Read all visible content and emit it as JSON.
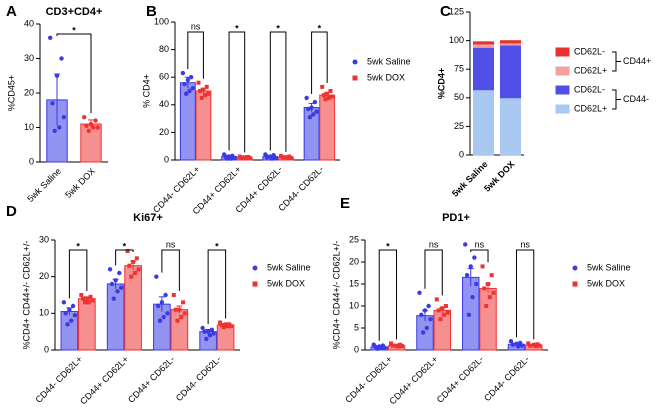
{
  "chart_data": [
    {
      "type": "bar",
      "panel": "A",
      "title": "CD3+CD4+",
      "ylabel": "%CD45+",
      "categories": [
        "5wk Saline",
        "5wk DOX"
      ],
      "colors": [
        "#3a3ae6",
        "#ee3333"
      ],
      "series": [
        {
          "values": [
            18,
            11
          ],
          "errors": [
            7.5,
            1.2
          ],
          "points": [
            [
              36,
              30,
              25,
              17,
              13,
              10,
              9
            ],
            [
              13,
              12,
              11,
              10.5,
              10,
              10,
              9
            ]
          ]
        }
      ],
      "ylim": [
        0,
        40
      ],
      "yticks": [
        0,
        10,
        20,
        30,
        40
      ],
      "significance": [
        "*"
      ]
    },
    {
      "type": "bar",
      "panel": "B",
      "ylabel": "% CD4+",
      "categories": [
        "CD44- CD62L+",
        "CD44+ CD62L+",
        "CD44+ CD62L-",
        "CD44- CD62L-"
      ],
      "series": [
        {
          "name": "5wk Saline",
          "color": "#3a3ae6",
          "marker": "circle",
          "values": [
            56,
            2.5,
            2.5,
            38
          ],
          "errors": [
            4,
            1,
            1,
            3
          ],
          "points": [
            [
              63,
              60,
              58,
              55,
              52,
              50,
              48
            ],
            [
              4,
              3,
              2.5,
              2,
              1.5,
              1,
              1
            ],
            [
              4,
              3.5,
              2.5,
              2,
              1.5,
              1
            ],
            [
              45,
              42,
              38,
              37,
              35,
              33,
              31
            ]
          ]
        },
        {
          "name": "5wk DOX",
          "color": "#ee3333",
          "marker": "square",
          "values": [
            50,
            2,
            2,
            47
          ],
          "errors": [
            2,
            0.5,
            0.5,
            2
          ],
          "points": [
            [
              56,
              53,
              51,
              50,
              48,
              47,
              45
            ],
            [
              2.5,
              2.2,
              2,
              1.8,
              1.5,
              1.5
            ],
            [
              3,
              2.5,
              2,
              2,
              1.5,
              1.5
            ],
            [
              53,
              50,
              48,
              47,
              46,
              45,
              44
            ]
          ]
        }
      ],
      "ylim": [
        0,
        100
      ],
      "yticks": [
        0,
        20,
        40,
        60,
        80,
        100
      ],
      "significance": [
        "ns",
        "*",
        "*",
        "*"
      ]
    },
    {
      "type": "stacked_bar",
      "panel": "C",
      "ylabel": "%CD4+",
      "categories": [
        "5wk Saline",
        "5wk DOX"
      ],
      "series": [
        {
          "name": "CD62L+",
          "color": "#a8c8f0",
          "values": [
            57,
            50
          ]
        },
        {
          "name": "CD62L-",
          "color": "#5050e8",
          "values": [
            37,
            46
          ]
        },
        {
          "name": "CD62L+",
          "color": "#f4a0a0",
          "values": [
            3,
            2
          ]
        },
        {
          "name": "CD62L-",
          "color": "#e83030",
          "values": [
            2,
            2
          ]
        }
      ],
      "legend_groups": [
        "CD44+",
        "CD44-"
      ],
      "ylim": [
        0,
        125
      ],
      "yticks": [
        0,
        25,
        50,
        75,
        100,
        125
      ]
    },
    {
      "type": "bar",
      "panel": "D",
      "title": "Ki67+",
      "ylabel": "%CD4+ CD44+/- CD62L+/-",
      "categories": [
        "CD44- CD62L+",
        "CD44+ CD62L+",
        "CD44+ CD62L-",
        "CD44- CD62L-"
      ],
      "series": [
        {
          "name": "5wk Saline",
          "color": "#3a3ae6",
          "marker": "circle",
          "values": [
            10.5,
            18,
            12.5,
            5
          ],
          "errors": [
            1,
            1.3,
            2,
            0.6
          ],
          "points": [
            [
              13,
              12,
              11,
              10,
              9.5,
              8,
              7
            ],
            [
              22,
              21,
              19,
              18,
              17,
              16,
              14
            ],
            [
              20,
              15,
              13,
              12,
              10,
              9,
              8
            ],
            [
              6,
              5.5,
              5,
              5,
              4.5,
              4,
              3
            ]
          ]
        },
        {
          "name": "5wk DOX",
          "color": "#ee3333",
          "marker": "square",
          "values": [
            14,
            23,
            11,
            6.8
          ],
          "errors": [
            0.5,
            1.2,
            1,
            0.3
          ],
          "points": [
            [
              15,
              14.5,
              14,
              14,
              13.5,
              13,
              13
            ],
            [
              27,
              25,
              24,
              23,
              22,
              21,
              20
            ],
            [
              15,
              13,
              11,
              11,
              10,
              9,
              8
            ],
            [
              7.5,
              7,
              7,
              6.8,
              6.5,
              6.5,
              6.2
            ]
          ]
        }
      ],
      "ylim": [
        0,
        30
      ],
      "yticks": [
        0,
        10,
        20,
        30
      ],
      "significance": [
        "*",
        "*",
        "ns",
        "*"
      ]
    },
    {
      "type": "bar",
      "panel": "E",
      "title": "PD1+",
      "ylabel": "%CD4+ CD44+/- CD62L+/-",
      "categories": [
        "CD44- CD62L+",
        "CD44+ CD62L+",
        "CD44+ CD62L-",
        "CD44- CD62L-"
      ],
      "series": [
        {
          "name": "5wk Saline",
          "color": "#3a3ae6",
          "marker": "circle",
          "values": [
            0.7,
            7.8,
            16.5,
            1.3
          ],
          "errors": [
            0.2,
            1.2,
            2,
            0.2
          ],
          "points": [
            [
              1.2,
              1,
              0.8,
              0.7,
              0.5,
              0.4,
              0.3
            ],
            [
              13,
              10,
              9,
              8,
              7,
              5,
              4
            ],
            [
              24,
              21,
              19,
              17,
              15,
              12,
              8
            ],
            [
              2,
              1.6,
              1.4,
              1.2,
              1,
              0.8
            ]
          ]
        },
        {
          "name": "5wk DOX",
          "color": "#ee3333",
          "marker": "square",
          "values": [
            1,
            9,
            14,
            1.1
          ],
          "errors": [
            0.1,
            0.6,
            1,
            0.1
          ],
          "points": [
            [
              1.5,
              1.2,
              1,
              1,
              0.9,
              0.8
            ],
            [
              11.5,
              10,
              9.5,
              9,
              8.5,
              8,
              7
            ],
            [
              19,
              17,
              15,
              14,
              13,
              12,
              10
            ],
            [
              1.5,
              1.3,
              1.2,
              1,
              1,
              0.9
            ]
          ]
        }
      ],
      "ylim": [
        0,
        25
      ],
      "yticks": [
        0,
        5,
        10,
        15,
        20,
        25
      ],
      "significance": [
        "*",
        "ns",
        "ns",
        "ns"
      ]
    }
  ]
}
